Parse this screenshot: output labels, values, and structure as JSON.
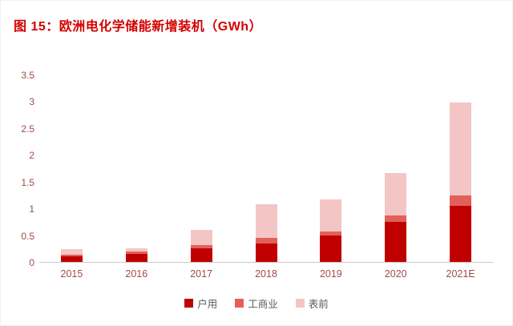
{
  "title": "图 15：欧洲电化学储能新增装机（GWh）",
  "colors": {
    "title": "#d40000",
    "axis_label": "#9e4b4b",
    "axis_line": "#c9c9c9"
  },
  "chart_data": {
    "type": "bar",
    "stacked": true,
    "title": "图 15：欧洲电化学储能新增装机（GWh）",
    "xlabel": "",
    "ylabel": "",
    "categories": [
      "2015",
      "2016",
      "2017",
      "2018",
      "2019",
      "2020",
      "2021E"
    ],
    "series": [
      {
        "name": "户用",
        "color": "#c00000",
        "values": [
          0.1,
          0.15,
          0.25,
          0.35,
          0.5,
          0.75,
          1.05
        ]
      },
      {
        "name": "工商业",
        "color": "#e3605a",
        "values": [
          0.03,
          0.04,
          0.06,
          0.1,
          0.08,
          0.12,
          0.2
        ]
      },
      {
        "name": "表前",
        "color": "#f3c6c5",
        "values": [
          0.1,
          0.06,
          0.28,
          0.63,
          0.6,
          0.8,
          1.75
        ]
      }
    ],
    "ylim": [
      0,
      3.5
    ],
    "yticks": [
      0,
      0.5,
      1,
      1.5,
      2,
      2.5,
      3,
      3.5
    ],
    "grid": false,
    "legend_position": "bottom"
  }
}
